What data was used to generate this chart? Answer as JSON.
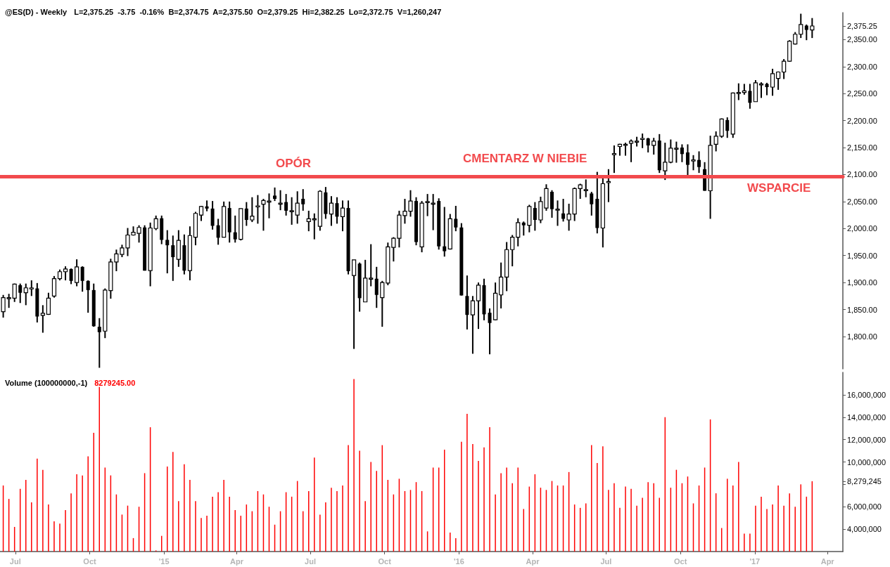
{
  "chart_data": [
    {
      "type": "candlestick",
      "title": "@ES(D) - Weekly",
      "subtitle": "L=2,375.25  -3.75  -0.16%  B=2,374.75  A=2,375.50  O=2,379.25  Hi=2,382.25  Lo=2,372.75  V=1,260,247",
      "color": "#000000",
      "x": [
        "2014-06-16",
        "2014-06-23",
        "2014-06-30",
        "2014-07-07",
        "2014-07-14",
        "2014-07-21",
        "2014-07-28",
        "2014-08-04",
        "2014-08-11",
        "2014-08-18",
        "2014-08-25",
        "2014-09-01",
        "2014-09-08",
        "2014-09-15",
        "2014-09-22",
        "2014-09-29",
        "2014-10-06",
        "2014-10-13",
        "2014-10-20",
        "2014-10-27",
        "2014-11-03",
        "2014-11-10",
        "2014-11-17",
        "2014-11-24",
        "2014-12-01",
        "2014-12-08",
        "2014-12-15",
        "2014-12-22",
        "2014-12-29",
        "2015-01-05",
        "2015-01-12",
        "2015-01-19",
        "2015-01-26",
        "2015-02-02",
        "2015-02-09",
        "2015-02-16",
        "2015-02-23",
        "2015-03-02",
        "2015-03-09",
        "2015-03-16",
        "2015-03-23",
        "2015-03-30",
        "2015-04-06",
        "2015-04-13",
        "2015-04-20",
        "2015-04-27",
        "2015-05-04",
        "2015-05-11",
        "2015-05-18",
        "2015-05-25",
        "2015-06-01",
        "2015-06-08",
        "2015-06-15",
        "2015-06-22",
        "2015-06-29",
        "2015-07-06",
        "2015-07-13",
        "2015-07-20",
        "2015-07-27",
        "2015-08-03",
        "2015-08-10",
        "2015-08-17",
        "2015-08-24",
        "2015-08-31",
        "2015-09-07",
        "2015-09-14",
        "2015-09-21",
        "2015-09-28",
        "2015-10-05",
        "2015-10-12",
        "2015-10-19",
        "2015-10-26",
        "2015-11-02",
        "2015-11-09",
        "2015-11-16",
        "2015-11-23",
        "2015-11-30",
        "2015-12-07",
        "2015-12-14",
        "2015-12-21",
        "2015-12-28",
        "2016-01-04",
        "2016-01-11",
        "2016-01-18",
        "2016-01-25",
        "2016-02-01",
        "2016-02-08",
        "2016-02-15",
        "2016-02-22",
        "2016-02-29",
        "2016-03-07",
        "2016-03-14",
        "2016-03-21",
        "2016-03-28",
        "2016-04-04",
        "2016-04-11",
        "2016-04-18",
        "2016-04-25",
        "2016-05-02",
        "2016-05-09",
        "2016-05-16",
        "2016-05-23",
        "2016-05-30",
        "2016-06-06",
        "2016-06-13",
        "2016-06-20",
        "2016-06-27",
        "2016-07-04",
        "2016-07-11",
        "2016-07-18",
        "2016-07-25",
        "2016-08-01",
        "2016-08-08",
        "2016-08-15",
        "2016-08-22",
        "2016-08-29",
        "2016-09-05",
        "2016-09-12",
        "2016-09-19",
        "2016-09-26",
        "2016-10-03",
        "2016-10-10",
        "2016-10-17",
        "2016-10-24",
        "2016-10-31",
        "2016-11-07",
        "2016-11-14",
        "2016-11-21",
        "2016-11-28",
        "2016-12-05",
        "2016-12-12",
        "2016-12-19",
        "2016-12-26",
        "2017-01-02",
        "2017-01-09",
        "2017-01-16",
        "2017-01-23",
        "2017-01-30",
        "2017-02-06",
        "2017-02-13",
        "2017-02-20",
        "2017-02-27",
        "2017-03-06",
        "2017-03-13"
      ],
      "ohlc": [
        [
          1846,
          1877,
          1835,
          1872
        ],
        [
          1871,
          1879,
          1853,
          1872
        ],
        [
          1871,
          1898,
          1864,
          1897
        ],
        [
          1895,
          1898,
          1862,
          1881
        ],
        [
          1881,
          1898,
          1858,
          1890
        ],
        [
          1890,
          1904,
          1875,
          1890
        ],
        [
          1889,
          1899,
          1826,
          1837
        ],
        [
          1839,
          1858,
          1807,
          1843
        ],
        [
          1841,
          1881,
          1840,
          1871
        ],
        [
          1875,
          1912,
          1872,
          1907
        ],
        [
          1907,
          1924,
          1904,
          1920
        ],
        [
          1920,
          1930,
          1904,
          1925
        ],
        [
          1925,
          1926,
          1897,
          1903
        ],
        [
          1900,
          1943,
          1893,
          1929
        ],
        [
          1929,
          1930,
          1883,
          1903
        ],
        [
          1903,
          1904,
          1844,
          1886
        ],
        [
          1886,
          1898,
          1818,
          1819
        ],
        [
          1818,
          1834,
          1742,
          1808
        ],
        [
          1810,
          1889,
          1797,
          1886
        ],
        [
          1885,
          1944,
          1870,
          1938
        ],
        [
          1938,
          1961,
          1921,
          1953
        ],
        [
          1952,
          1970,
          1947,
          1964
        ],
        [
          1964,
          2001,
          1949,
          1988
        ],
        [
          1988,
          2004,
          1987,
          1993
        ],
        [
          1991,
          2006,
          1974,
          2002
        ],
        [
          2002,
          2006,
          1922,
          1922
        ],
        [
          1922,
          2011,
          1893,
          2001
        ],
        [
          2000,
          2024,
          1997,
          2018
        ],
        [
          2019,
          2024,
          1971,
          1979
        ],
        [
          1979,
          1997,
          1917,
          1969
        ],
        [
          1969,
          1987,
          1903,
          1947
        ],
        [
          1943,
          1997,
          1929,
          1978
        ],
        [
          1969,
          1989,
          1915,
          1922
        ],
        [
          1922,
          2004,
          1904,
          1987
        ],
        [
          1984,
          2031,
          1969,
          2028
        ],
        [
          2025,
          2042,
          2014,
          2041
        ],
        [
          2041,
          2052,
          2032,
          2037
        ],
        [
          2037,
          2051,
          1998,
          2005
        ],
        [
          2006,
          2018,
          1970,
          1983
        ],
        [
          1984,
          2050,
          1984,
          2041
        ],
        [
          2038,
          2050,
          1974,
          1993
        ],
        [
          1993,
          2024,
          1974,
          1980
        ],
        [
          1980,
          2037,
          1978,
          2037
        ],
        [
          2037,
          2049,
          2005,
          2016
        ],
        [
          2016,
          2058,
          2012,
          2023
        ],
        [
          2042,
          2062,
          2009,
          2042
        ],
        [
          2045,
          2055,
          1996,
          2052
        ],
        [
          2051,
          2065,
          2019,
          2051
        ],
        [
          2061,
          2076,
          2051,
          2055
        ],
        [
          2047,
          2071,
          2034,
          2047
        ],
        [
          2049,
          2064,
          2024,
          2033
        ],
        [
          2033,
          2058,
          2007,
          2033
        ],
        [
          2025,
          2069,
          2009,
          2047
        ],
        [
          2055,
          2073,
          2033,
          2045
        ],
        [
          2013,
          2033,
          1995,
          2018
        ],
        [
          2018,
          2028,
          1980,
          2018
        ],
        [
          2004,
          2071,
          1996,
          2069
        ],
        [
          2067,
          2077,
          2018,
          2027
        ],
        [
          2027,
          2060,
          2005,
          2047
        ],
        [
          2047,
          2058,
          2009,
          2022
        ],
        [
          2022,
          2052,
          1995,
          2038
        ],
        [
          2038,
          2052,
          1915,
          1921
        ],
        [
          1913,
          1942,
          1777,
          1942
        ],
        [
          1935,
          1937,
          1846,
          1871
        ],
        [
          1864,
          1942,
          1864,
          1908
        ],
        [
          1908,
          1971,
          1893,
          1908
        ],
        [
          1907,
          1929,
          1853,
          1877
        ],
        [
          1872,
          1903,
          1818,
          1900
        ],
        [
          1899,
          1974,
          1895,
          1966
        ],
        [
          1965,
          1984,
          1939,
          1982
        ],
        [
          1982,
          2033,
          1965,
          2025
        ],
        [
          2024,
          2055,
          2009,
          2032
        ],
        [
          2032,
          2071,
          2022,
          2051
        ],
        [
          2051,
          2058,
          1969,
          1975
        ],
        [
          1966,
          2051,
          1956,
          2047
        ],
        [
          2050,
          2064,
          2023,
          2050
        ],
        [
          2047,
          2064,
          1997,
          2047
        ],
        [
          2051,
          2056,
          1961,
          1967
        ],
        [
          1967,
          2040,
          1948,
          1958
        ],
        [
          1962,
          2027,
          1961,
          2018
        ],
        [
          2018,
          2042,
          1995,
          2002
        ],
        [
          2002,
          2010,
          1876,
          1876
        ],
        [
          1875,
          1913,
          1813,
          1840
        ],
        [
          1840,
          1875,
          1768,
          1866
        ],
        [
          1866,
          1900,
          1814,
          1895
        ],
        [
          1895,
          1907,
          1830,
          1841
        ],
        [
          1844,
          1852,
          1767,
          1825
        ],
        [
          1831,
          1900,
          1830,
          1880
        ],
        [
          1877,
          1937,
          1852,
          1910
        ],
        [
          1910,
          1975,
          1884,
          1961
        ],
        [
          1961,
          1988,
          1930,
          1984
        ],
        [
          1984,
          2019,
          1967,
          2011
        ],
        [
          2011,
          2013,
          1987,
          2006
        ],
        [
          2006,
          2044,
          1993,
          2041
        ],
        [
          2038,
          2049,
          1996,
          2016
        ],
        [
          2016,
          2059,
          2010,
          2050
        ],
        [
          2038,
          2082,
          2033,
          2074
        ],
        [
          2068,
          2071,
          2020,
          2036
        ],
        [
          2036,
          2052,
          2005,
          2036
        ],
        [
          2028,
          2055,
          2013,
          2018
        ],
        [
          2016,
          2046,
          1996,
          2027
        ],
        [
          2027,
          2076,
          2014,
          2074
        ],
        [
          2074,
          2083,
          2055,
          2081
        ],
        [
          2072,
          2091,
          2058,
          2072
        ],
        [
          2065,
          2068,
          2024,
          2045
        ],
        [
          2055,
          2105,
          1991,
          2001
        ],
        [
          2001,
          2094,
          1965,
          2083
        ],
        [
          2085,
          2110,
          2049,
          2087
        ],
        [
          2137,
          2154,
          2103,
          2139
        ],
        [
          2152,
          2157,
          2135,
          2156
        ],
        [
          2154,
          2159,
          2135,
          2156
        ],
        [
          2158,
          2165,
          2123,
          2162
        ],
        [
          2161,
          2170,
          2152,
          2162
        ],
        [
          2167,
          2176,
          2149,
          2167
        ],
        [
          2167,
          2168,
          2141,
          2154
        ],
        [
          2154,
          2168,
          2137,
          2162
        ],
        [
          2163,
          2175,
          2103,
          2108
        ],
        [
          2107,
          2159,
          2090,
          2123
        ],
        [
          2123,
          2165,
          2121,
          2149
        ],
        [
          2148,
          2161,
          2122,
          2149
        ],
        [
          2150,
          2156,
          2123,
          2138
        ],
        [
          2141,
          2156,
          2099,
          2118
        ],
        [
          2125,
          2136,
          2108,
          2127
        ],
        [
          2127,
          2143,
          2103,
          2114
        ],
        [
          2110,
          2123,
          2070,
          2070
        ],
        [
          2070,
          2172,
          2018,
          2154
        ],
        [
          2156,
          2180,
          2143,
          2171
        ],
        [
          2171,
          2204,
          2168,
          2203
        ],
        [
          2201,
          2206,
          2168,
          2181
        ],
        [
          2175,
          2252,
          2168,
          2251
        ],
        [
          2251,
          2269,
          2238,
          2252
        ],
        [
          2252,
          2268,
          2248,
          2255
        ],
        [
          2255,
          2268,
          2222,
          2233
        ],
        [
          2235,
          2275,
          2235,
          2270
        ],
        [
          2268,
          2271,
          2242,
          2268
        ],
        [
          2268,
          2270,
          2247,
          2262
        ],
        [
          2262,
          2296,
          2246,
          2287
        ],
        [
          2278,
          2291,
          2257,
          2290
        ],
        [
          2290,
          2314,
          2277,
          2310
        ],
        [
          2310,
          2349,
          2309,
          2347
        ],
        [
          2342,
          2364,
          2341,
          2360
        ],
        [
          2360,
          2398,
          2353,
          2378
        ],
        [
          2376,
          2378,
          2349,
          2368
        ],
        [
          2368,
          2390,
          2353,
          2375.25
        ]
      ],
      "xlim": [
        "2014-06-12",
        "2017-04-20"
      ],
      "ylim": [
        1740,
        2400
      ],
      "yticks": [
        {
          "value": 1800,
          "label": "1,800.00"
        },
        {
          "value": 1850,
          "label": "1,850.00"
        },
        {
          "value": 1900,
          "label": "1,900.00"
        },
        {
          "value": 1950,
          "label": "1,950.00"
        },
        {
          "value": 2000,
          "label": "2,000.00"
        },
        {
          "value": 2050,
          "label": "2,050.00"
        },
        {
          "value": 2100,
          "label": "2,100.00"
        },
        {
          "value": 2150,
          "label": "2,150.00"
        },
        {
          "value": 2200,
          "label": "2,200.00"
        },
        {
          "value": 2250,
          "label": "2,250.00"
        },
        {
          "value": 2300,
          "label": "2,300.00"
        },
        {
          "value": 2350,
          "label": "2,350.00"
        },
        {
          "value": 2375.25,
          "label": "2,375.25"
        }
      ],
      "tick_labels": "y",
      "ref_lines": [
        {
          "axis": "y",
          "value": 2096,
          "color": "#f24a4d"
        }
      ],
      "annotations": [
        "OPÓR",
        "CMENTARZ W NIEBIE",
        "WSPARCIE"
      ]
    },
    {
      "type": "bar",
      "title": "Volume (100000000,-1)",
      "subtitle": "8279245.00",
      "color": "#ff0000",
      "x": [
        "2014-06-16",
        "2014-06-23",
        "2014-06-30",
        "2014-07-07",
        "2014-07-14",
        "2014-07-21",
        "2014-07-28",
        "2014-08-04",
        "2014-08-11",
        "2014-08-18",
        "2014-08-25",
        "2014-09-01",
        "2014-09-08",
        "2014-09-15",
        "2014-09-22",
        "2014-09-29",
        "2014-10-06",
        "2014-10-13",
        "2014-10-20",
        "2014-10-27",
        "2014-11-03",
        "2014-11-10",
        "2014-11-17",
        "2014-11-24",
        "2014-12-01",
        "2014-12-08",
        "2014-12-15",
        "2014-12-22",
        "2014-12-29",
        "2015-01-05",
        "2015-01-12",
        "2015-01-19",
        "2015-01-26",
        "2015-02-02",
        "2015-02-09",
        "2015-02-16",
        "2015-02-23",
        "2015-03-02",
        "2015-03-09",
        "2015-03-16",
        "2015-03-23",
        "2015-03-30",
        "2015-04-06",
        "2015-04-13",
        "2015-04-20",
        "2015-04-27",
        "2015-05-04",
        "2015-05-11",
        "2015-05-18",
        "2015-05-25",
        "2015-06-01",
        "2015-06-08",
        "2015-06-15",
        "2015-06-22",
        "2015-06-29",
        "2015-07-06",
        "2015-07-13",
        "2015-07-20",
        "2015-07-27",
        "2015-08-03",
        "2015-08-10",
        "2015-08-17",
        "2015-08-24",
        "2015-08-31",
        "2015-09-07",
        "2015-09-14",
        "2015-09-21",
        "2015-09-28",
        "2015-10-05",
        "2015-10-12",
        "2015-10-19",
        "2015-10-26",
        "2015-11-02",
        "2015-11-09",
        "2015-11-16",
        "2015-11-23",
        "2015-11-30",
        "2015-12-07",
        "2015-12-14",
        "2015-12-21",
        "2015-12-28",
        "2016-01-04",
        "2016-01-11",
        "2016-01-18",
        "2016-01-25",
        "2016-02-01",
        "2016-02-08",
        "2016-02-15",
        "2016-02-22",
        "2016-02-29",
        "2016-03-07",
        "2016-03-14",
        "2016-03-21",
        "2016-03-28",
        "2016-04-04",
        "2016-04-11",
        "2016-04-18",
        "2016-04-25",
        "2016-05-02",
        "2016-05-09",
        "2016-05-16",
        "2016-05-23",
        "2016-05-30",
        "2016-06-06",
        "2016-06-13",
        "2016-06-20",
        "2016-06-27",
        "2016-07-04",
        "2016-07-11",
        "2016-07-18",
        "2016-07-25",
        "2016-08-01",
        "2016-08-08",
        "2016-08-15",
        "2016-08-22",
        "2016-08-29",
        "2016-09-05",
        "2016-09-12",
        "2016-09-19",
        "2016-09-26",
        "2016-10-03",
        "2016-10-10",
        "2016-10-17",
        "2016-10-24",
        "2016-10-31",
        "2016-11-07",
        "2016-11-14",
        "2016-11-21",
        "2016-11-28",
        "2016-12-05",
        "2016-12-12",
        "2016-12-19",
        "2016-12-26",
        "2017-01-02",
        "2017-01-09",
        "2017-01-16",
        "2017-01-23",
        "2017-01-30",
        "2017-02-06",
        "2017-02-13",
        "2017-02-20",
        "2017-02-27",
        "2017-03-06",
        "2017-03-13"
      ],
      "values": [
        7900000,
        6700000,
        4200000,
        7600000,
        8400000,
        6400000,
        10300000,
        9300000,
        6200000,
        4700000,
        4500000,
        5700000,
        7200000,
        8900000,
        8800000,
        10500000,
        12600000,
        16700000,
        9500000,
        8800000,
        7100000,
        5300000,
        6100000,
        3200000,
        6000000,
        9000000,
        13100000,
        2100000,
        3400000,
        9600000,
        10900000,
        6500000,
        9800000,
        8400000,
        6500000,
        5000000,
        5200000,
        6900000,
        7300000,
        8400000,
        6900000,
        5700000,
        5200000,
        6200000,
        5600000,
        7400000,
        7100000,
        6000000,
        4400000,
        5600000,
        7300000,
        6900000,
        8300000,
        5600000,
        7400000,
        10400000,
        5300000,
        6400000,
        7700000,
        7400000,
        7900000,
        11500000,
        17400000,
        11000000,
        6500000,
        10000000,
        9200000,
        11500000,
        8400000,
        7100000,
        8500000,
        7400000,
        7500000,
        8200000,
        7400000,
        3800000,
        9500000,
        9500000,
        11100000,
        3700000,
        3200000,
        11800000,
        14300000,
        11600000,
        10100000,
        11300000,
        13100000,
        7100000,
        9000000,
        9500000,
        8100000,
        9500000,
        5800000,
        7800000,
        8900000,
        7700000,
        7500000,
        8300000,
        7900000,
        7900000,
        9100000,
        6200000,
        5900000,
        6300000,
        11500000,
        9900000,
        11400000,
        7500000,
        8100000,
        5900000,
        7800000,
        7600000,
        6100000,
        6800000,
        8200000,
        8100000,
        6800000,
        14000000,
        7700000,
        9300000,
        8100000,
        8700000,
        6300000,
        7900000,
        9500000,
        13800000,
        7200000,
        4100000,
        8500000,
        7900000,
        10000000,
        3600000,
        3600000,
        6100000,
        6900000,
        5800000,
        6200000,
        7900000,
        6100000,
        7200000,
        6000000,
        8000000,
        6900000,
        8279245
      ],
      "xlim": [
        "2014-06-12",
        "2017-04-20"
      ],
      "xticks": [
        {
          "value": "2014-07-01",
          "label": "Jul"
        },
        {
          "value": "2014-10-01",
          "label": "Oct"
        },
        {
          "value": "2015-01-01",
          "label": "'15"
        },
        {
          "value": "2015-04-01",
          "label": "Apr"
        },
        {
          "value": "2015-07-01",
          "label": "Jul"
        },
        {
          "value": "2015-10-01",
          "label": "Oct"
        },
        {
          "value": "2016-01-01",
          "label": "'16"
        },
        {
          "value": "2016-04-01",
          "label": "Apr"
        },
        {
          "value": "2016-07-01",
          "label": "Jul"
        },
        {
          "value": "2016-10-01",
          "label": "Oct"
        },
        {
          "value": "2017-01-01",
          "label": "'17"
        },
        {
          "value": "2017-04-01",
          "label": "Apr"
        }
      ],
      "ylim": [
        2000000,
        18000000
      ],
      "yticks": [
        {
          "value": 4000000,
          "label": "4,000,000"
        },
        {
          "value": 6000000,
          "label": "6,000,000"
        },
        {
          "value": 8000000,
          "label": null
        },
        {
          "value": 8279245,
          "label": "8,279,245"
        },
        {
          "value": 10000000,
          "label": "10,000,000"
        },
        {
          "value": 12000000,
          "label": "12,000,000"
        },
        {
          "value": 14000000,
          "label": "14,000,000"
        },
        {
          "value": 16000000,
          "label": "16,000,000"
        }
      ]
    }
  ]
}
